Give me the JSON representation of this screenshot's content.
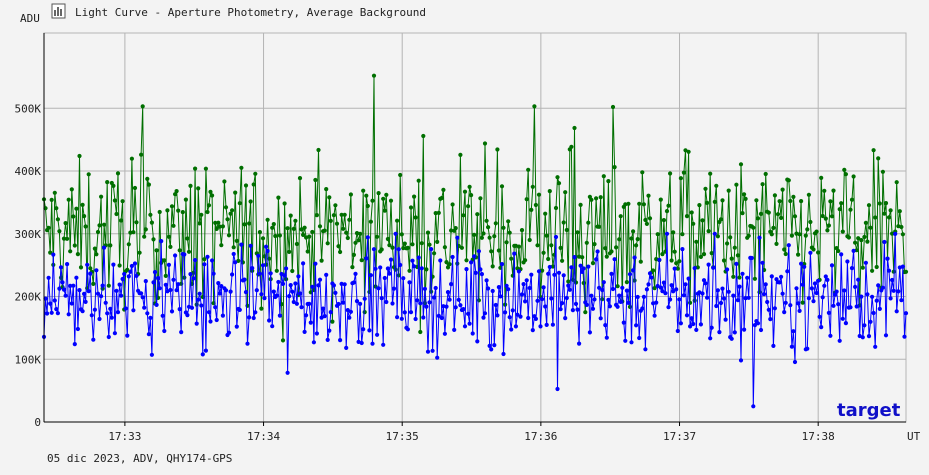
{
  "window": {
    "title": "Light Curve - Aperture Photometry, Average Background",
    "footer": "05 dic 2023, ADV, QHY174-GPS"
  },
  "colors": {
    "background": "#f3f3f3",
    "grid": "#b4b4b4",
    "axis": "#000000",
    "target_series": "#0000ff",
    "comparison_series": "#006f00",
    "target_label": "#1010c8"
  },
  "chart_data": {
    "type": "line",
    "ylabel": "ADU",
    "xlabel": "UT",
    "ylim": [
      0,
      620000
    ],
    "y_ticks": [
      {
        "value": 0,
        "label": "0"
      },
      {
        "value": 100000,
        "label": "100K"
      },
      {
        "value": 200000,
        "label": "200K"
      },
      {
        "value": 300000,
        "label": "300K"
      },
      {
        "value": 400000,
        "label": "400K"
      },
      {
        "value": 500000,
        "label": "500K"
      }
    ],
    "xlim": [
      "17:32:25",
      "17:38:38"
    ],
    "x_ticks": [
      "17:33",
      "17:34",
      "17:35",
      "17:36",
      "17:37",
      "17:38"
    ],
    "grid": true,
    "series": [
      {
        "name": "target",
        "color": "#0000ff",
        "mean": 200000,
        "min_approx": 25000,
        "max_approx": 300000,
        "labeled": true
      },
      {
        "color": "#006f00",
        "mean": 300000,
        "min_approx": 130000,
        "max_approx": 552000,
        "labeled": false
      }
    ],
    "notable_points": [
      {
        "series": 1,
        "x": "17:34:48",
        "y": 552000
      },
      {
        "series": 1,
        "x": "17:36:31",
        "y": 502000
      },
      {
        "series": 1,
        "x": "17:35:57",
        "y": 503000
      },
      {
        "series": 1,
        "x": "17:33:08",
        "y": 503000
      },
      {
        "series": 0,
        "x": "17:37:32",
        "y": 25000
      }
    ]
  }
}
